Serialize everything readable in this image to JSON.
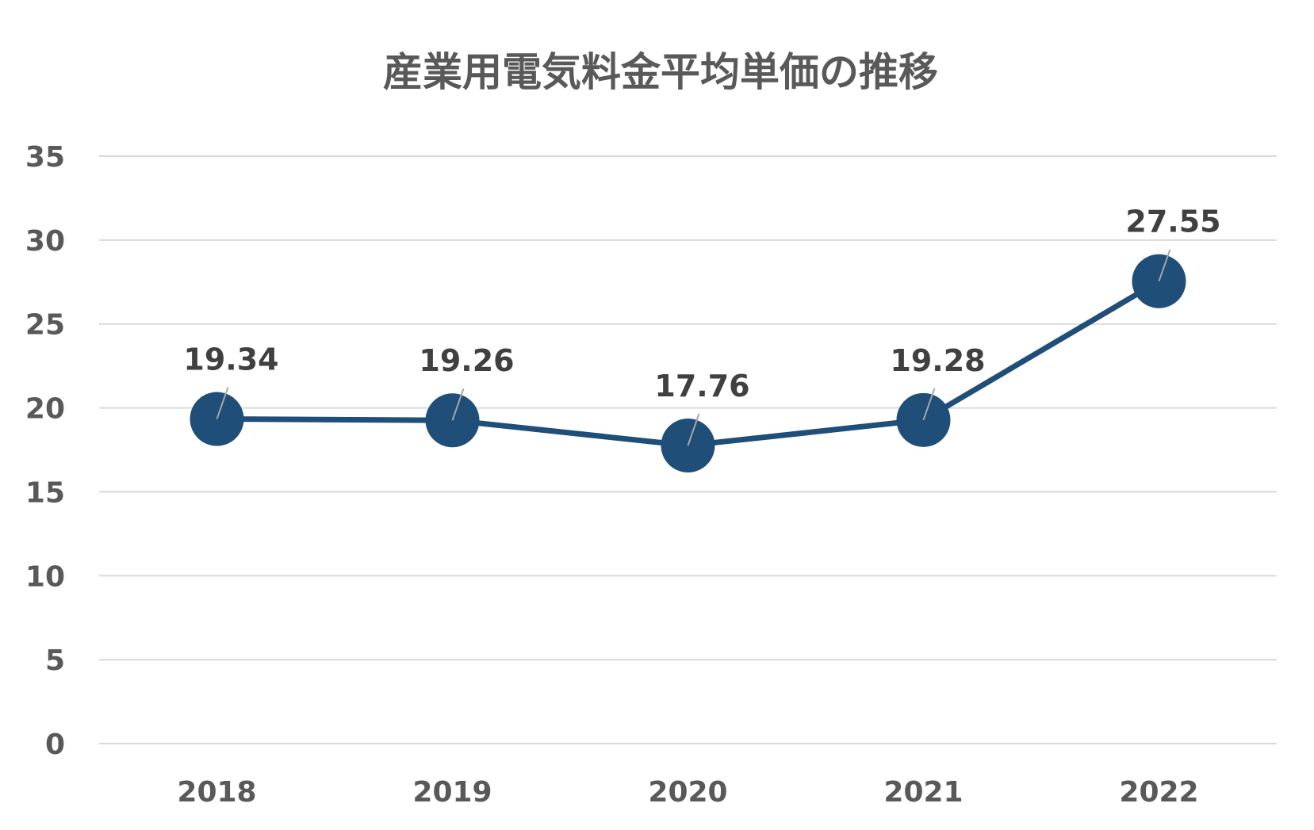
{
  "chart_data": {
    "type": "line",
    "title": "産業用電気料金平均単価の推移",
    "categories": [
      "2018",
      "2019",
      "2020",
      "2021",
      "2022"
    ],
    "series": [
      {
        "values": [
          19.34,
          19.26,
          17.76,
          19.28,
          27.55
        ],
        "color": "#1f4e79"
      }
    ],
    "data_labels": [
      "19.34",
      "19.26",
      "17.76",
      "19.28",
      "27.55"
    ],
    "ylim": [
      0,
      35
    ],
    "yticks": [
      "0",
      "5",
      "10",
      "15",
      "20",
      "25",
      "30",
      "35"
    ],
    "grid": true,
    "legend": "none"
  },
  "colors": {
    "series": "#1f4e79",
    "grid": "#d9d9d9",
    "text": "#595959"
  }
}
